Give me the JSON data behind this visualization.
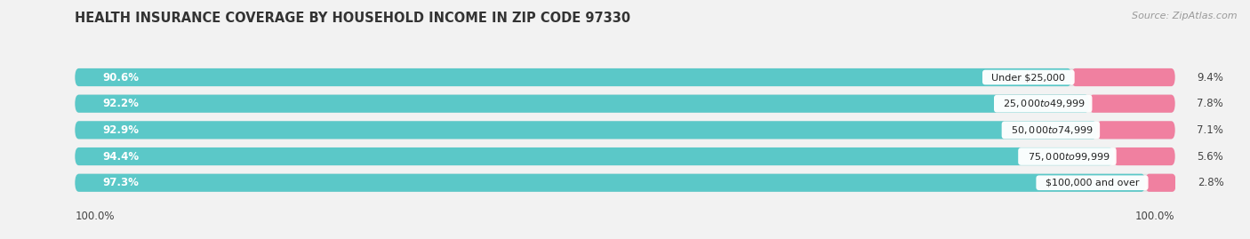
{
  "title": "HEALTH INSURANCE COVERAGE BY HOUSEHOLD INCOME IN ZIP CODE 97330",
  "source": "Source: ZipAtlas.com",
  "categories": [
    "Under $25,000",
    "$25,000 to $49,999",
    "$50,000 to $74,999",
    "$75,000 to $99,999",
    "$100,000 and over"
  ],
  "with_coverage": [
    90.6,
    92.2,
    92.9,
    94.4,
    97.3
  ],
  "without_coverage": [
    9.4,
    7.8,
    7.1,
    5.6,
    2.8
  ],
  "coverage_color": "#5bc8c8",
  "no_coverage_color": "#f080a0",
  "bg_color": "#f2f2f2",
  "bar_bg_color": "#e2e2e2",
  "bar_height": 0.68,
  "left_label": "100.0%",
  "right_label": "100.0%",
  "title_fontsize": 10.5,
  "source_fontsize": 8,
  "bar_label_fontsize": 8.5,
  "cat_label_fontsize": 8,
  "nocov_label_fontsize": 8.5
}
